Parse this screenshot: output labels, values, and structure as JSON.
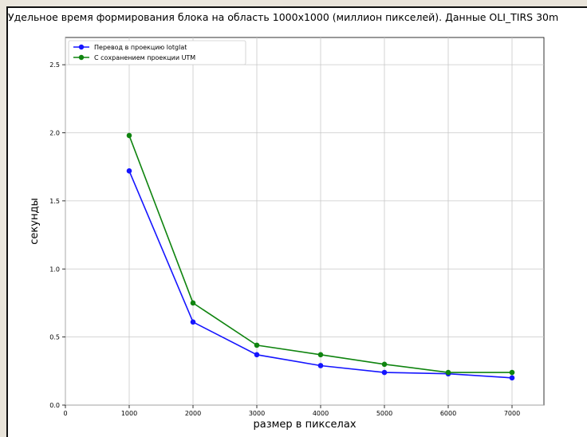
{
  "chart_data": {
    "type": "line",
    "title": "Удельное время формирования блока на область 1000x1000 (миллион пикселей). Данные OLI_TIRS 30m",
    "xlabel": "размер в пикселах",
    "ylabel": "секунды",
    "xlim": [
      0,
      7500
    ],
    "ylim": [
      0,
      2.7
    ],
    "xticks": [
      "0",
      "1000",
      "2000",
      "3000",
      "4000",
      "5000",
      "6000",
      "7000"
    ],
    "yticks": [
      "0.0",
      "0.5",
      "1.0",
      "1.5",
      "2.0",
      "2.5"
    ],
    "grid": true,
    "legend_position": "top-left",
    "x": [
      1000,
      2000,
      3000,
      4000,
      5000,
      6000,
      7000
    ],
    "series": [
      {
        "name": "Перевод в проекцию lotglat",
        "color": "#1515ff",
        "values": [
          1.72,
          0.61,
          0.37,
          0.29,
          0.24,
          0.23,
          0.2
        ]
      },
      {
        "name": "С сохранением проекции UTM",
        "color": "#0f840f",
        "values": [
          1.98,
          0.75,
          0.44,
          0.37,
          0.3,
          0.24,
          0.24
        ]
      }
    ]
  }
}
